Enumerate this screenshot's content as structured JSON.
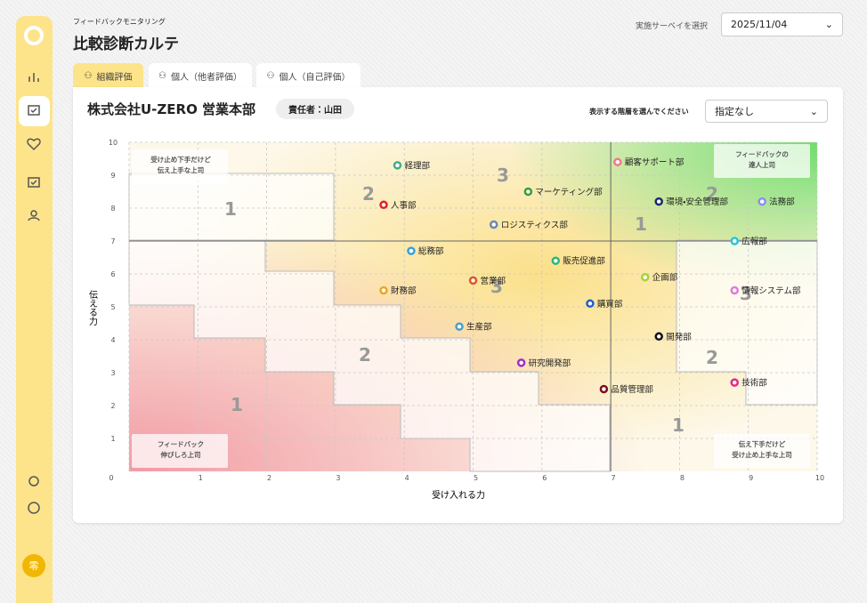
{
  "header": {
    "subtitle": "フィードバックモニタリング",
    "title": "比較診断カルテ",
    "survey_label": "実施サーベイを選択",
    "survey_value": "2025/11/04"
  },
  "tabs": [
    "組織評価",
    "個人（他者評価）",
    "個人（自己評価）"
  ],
  "card": {
    "org_name": "株式会社U-ZERO 営業本部",
    "manager": "責任者：山田",
    "level_label": "表示する階層を選んでください",
    "level_value": "指定なし"
  },
  "sidebar": {
    "avatar": "零"
  },
  "chart_data": {
    "type": "scatter",
    "xlabel": "受け入れる力",
    "ylabel": "伝える力",
    "xlim": [
      0,
      10
    ],
    "ylim": [
      0,
      10
    ],
    "xticks": [
      0,
      1,
      2,
      3,
      4,
      5,
      6,
      7,
      8,
      9,
      10
    ],
    "yticks": [
      1,
      2,
      3,
      4,
      5,
      6,
      7,
      8,
      9,
      10
    ],
    "quadrant_lines": [
      7,
      7
    ],
    "grid": true,
    "labels": [
      "経理部",
      "顧客サポート部",
      "マーケティング部",
      "人事部",
      "環境・安全管理部",
      "法務部",
      "ロジスティクス部",
      "広報部",
      "総務部",
      "販売促進部",
      "企画部",
      "営業部",
      "財務部",
      "情報システム部",
      "購買部",
      "生産部",
      "開発部",
      "研究開発部",
      "技術部",
      "品質管理部"
    ],
    "x": [
      3.9,
      7.1,
      5.8,
      3.7,
      7.7,
      9.2,
      5.3,
      8.8,
      4.1,
      6.2,
      7.5,
      5.0,
      3.7,
      8.8,
      6.7,
      4.8,
      7.7,
      5.7,
      8.8,
      6.9
    ],
    "values": [
      9.3,
      9.4,
      8.5,
      8.1,
      8.2,
      8.2,
      7.5,
      7.0,
      6.7,
      6.4,
      5.9,
      5.8,
      5.5,
      5.5,
      5.1,
      4.4,
      4.1,
      3.3,
      2.7,
      2.5
    ],
    "colors": [
      "#3fae8a",
      "#f07a8a",
      "#3a9a3a",
      "#e02020",
      "#1b2a6b",
      "#8a8ff0",
      "#6a8ab0",
      "#29c4d9",
      "#3aa0d8",
      "#2fb67a",
      "#a6d13a",
      "#e0542a",
      "#e6a820",
      "#e07ad8",
      "#1f5fcf",
      "#4ba0c8",
      "#111111",
      "#9b2fc9",
      "#e8248a",
      "#7a0f1f"
    ],
    "zone_labels": [
      "1",
      "2",
      "3",
      "1",
      "2",
      "3",
      "3",
      "2",
      "1",
      "2",
      "1"
    ],
    "annotations": [
      [
        "受け止め下手だけど",
        "伝え上手な上司"
      ],
      [
        "フィードバックの",
        "達人上司"
      ],
      [
        "フィードバック",
        "伸びしろ上司"
      ],
      [
        "伝え下手だけど",
        "受け止め上手な上司"
      ]
    ]
  }
}
